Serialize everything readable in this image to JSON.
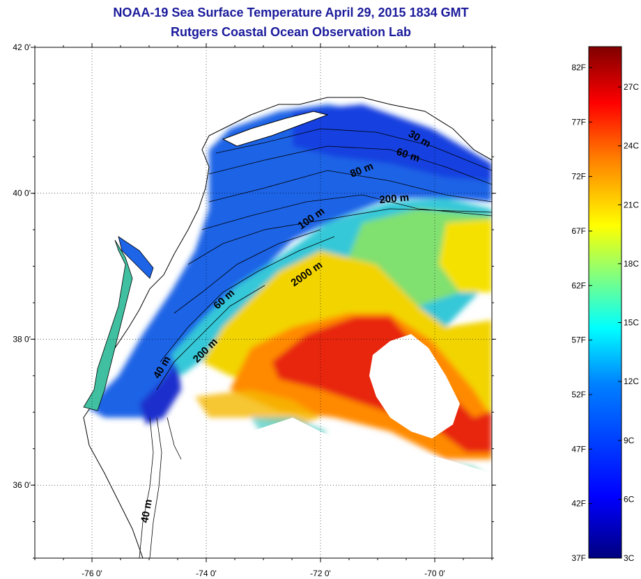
{
  "header": {
    "title": "NOAA-19 Sea Surface Temperature April 29, 2015 1834 GMT",
    "subtitle": "Rutgers Coastal Ocean Observation Lab"
  },
  "map": {
    "lat_ticks": [
      {
        "value": 42,
        "label": "42 0'"
      },
      {
        "value": 40,
        "label": "40 0'"
      },
      {
        "value": 38,
        "label": "38 0'"
      },
      {
        "value": 36,
        "label": "36 0'"
      }
    ],
    "lon_ticks": [
      {
        "value": -76,
        "label": "-76 0'"
      },
      {
        "value": -74,
        "label": "-74 0'"
      },
      {
        "value": -72,
        "label": "-72 0'"
      },
      {
        "value": -70,
        "label": "-70 0'"
      }
    ],
    "lat_range": [
      35,
      42
    ],
    "lon_range": [
      -77,
      -69
    ],
    "grid": "dotted",
    "depth_contours": [
      {
        "label": "30 m"
      },
      {
        "label": "60 m"
      },
      {
        "label": "80 m"
      },
      {
        "label": "200 m"
      },
      {
        "label": "100 m"
      },
      {
        "label": "2000 m"
      },
      {
        "label": "60 m"
      },
      {
        "label": "200 m"
      },
      {
        "label": "40 m"
      },
      {
        "label": "40 m"
      }
    ],
    "colors": {
      "land": "#ffffff",
      "cloud": "#ffffff",
      "coastline": "#000000"
    }
  },
  "colorbar": {
    "fahrenheit_labels": [
      "82F",
      "77F",
      "72F",
      "67F",
      "62F",
      "57F",
      "52F",
      "47F",
      "42F",
      "37F"
    ],
    "celsius_labels": [
      "27C",
      "24C",
      "21C",
      "18C",
      "15C",
      "12C",
      "9C",
      "6C",
      "3C"
    ],
    "colors": [
      "#00007f",
      "#0000ff",
      "#0080ff",
      "#00ffff",
      "#80ff80",
      "#ffff00",
      "#ff8000",
      "#ff0000",
      "#7f0000"
    ]
  }
}
